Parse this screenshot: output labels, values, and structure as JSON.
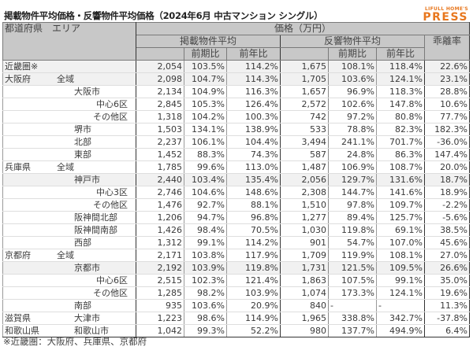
{
  "title": "掲載物件平均価格・反響物件平均価格（2024年6月 中古マンション シングル）",
  "logo": {
    "top": "LIFULL HOME'S",
    "main": "PRESS",
    "color": "#e8771e"
  },
  "header": {
    "area": "都道府県　エリア",
    "price": "価格（万円）",
    "listed": "掲載物件平均",
    "response": "反響物件平均",
    "divergence": "乖離率",
    "qoq": "前期比",
    "yoy": "前年比"
  },
  "rows": [
    {
      "pref": "近畿圏※",
      "area": "",
      "level": 0,
      "hl": true,
      "sep": false,
      "lv": "2,054",
      "lq": "103.5%",
      "ly": "114.2%",
      "rv": "1,675",
      "rq": "108.1%",
      "ry": "118.4%",
      "dv": "22.6%"
    },
    {
      "pref": "大阪府",
      "area": "全域",
      "level": 0,
      "hl": true,
      "sep": true,
      "lv": "2,098",
      "lq": "104.7%",
      "ly": "114.3%",
      "rv": "1,705",
      "rq": "103.6%",
      "ry": "124.1%",
      "dv": "23.1%"
    },
    {
      "pref": "",
      "area": "大阪市",
      "level": 1,
      "hl": false,
      "sep": false,
      "lv": "2,134",
      "lq": "104.9%",
      "ly": "116.3%",
      "rv": "1,657",
      "rq": "96.9%",
      "ry": "118.3%",
      "dv": "28.8%"
    },
    {
      "pref": "",
      "area": "中心6区",
      "level": 2,
      "hl": false,
      "sep": false,
      "lv": "2,845",
      "lq": "105.3%",
      "ly": "126.4%",
      "rv": "2,572",
      "rq": "102.6%",
      "ry": "147.8%",
      "dv": "10.6%"
    },
    {
      "pref": "",
      "area": "その他区",
      "level": 2,
      "hl": false,
      "sep": false,
      "lv": "1,318",
      "lq": "104.2%",
      "ly": "100.3%",
      "rv": "742",
      "rq": "97.2%",
      "ry": "80.8%",
      "dv": "77.7%"
    },
    {
      "pref": "",
      "area": "堺市",
      "level": 1,
      "hl": false,
      "sep": false,
      "lv": "1,503",
      "lq": "134.1%",
      "ly": "138.9%",
      "rv": "533",
      "rq": "78.8%",
      "ry": "82.3%",
      "dv": "182.3%"
    },
    {
      "pref": "",
      "area": "北部",
      "level": 1,
      "hl": false,
      "sep": false,
      "lv": "2,237",
      "lq": "106.1%",
      "ly": "104.4%",
      "rv": "3,494",
      "rq": "241.1%",
      "ry": "701.7%",
      "dv": "-36.0%"
    },
    {
      "pref": "",
      "area": "東部",
      "level": 1,
      "hl": false,
      "sep": false,
      "lv": "1,452",
      "lq": "88.3%",
      "ly": "74.3%",
      "rv": "587",
      "rq": "24.8%",
      "ry": "86.3%",
      "dv": "147.4%"
    },
    {
      "pref": "兵庫県",
      "area": "全域",
      "level": 0,
      "hl": false,
      "sep": false,
      "lv": "1,785",
      "lq": "99.6%",
      "ly": "113.0%",
      "rv": "1,487",
      "rq": "106.9%",
      "ry": "108.7%",
      "dv": "20.0%"
    },
    {
      "pref": "",
      "area": "神戸市",
      "level": 1,
      "hl": true,
      "sep": true,
      "lv": "2,440",
      "lq": "103.4%",
      "ly": "135.4%",
      "rv": "2,056",
      "rq": "129.7%",
      "ry": "131.6%",
      "dv": "18.7%"
    },
    {
      "pref": "",
      "area": "中心3区",
      "level": 2,
      "hl": false,
      "sep": false,
      "lv": "2,746",
      "lq": "104.6%",
      "ly": "148.6%",
      "rv": "2,308",
      "rq": "144.7%",
      "ry": "141.6%",
      "dv": "18.9%"
    },
    {
      "pref": "",
      "area": "その他区",
      "level": 2,
      "hl": false,
      "sep": false,
      "lv": "1,476",
      "lq": "92.7%",
      "ly": "88.1%",
      "rv": "1,510",
      "rq": "97.8%",
      "ry": "109.7%",
      "dv": "-2.2%"
    },
    {
      "pref": "",
      "area": "阪神間北部",
      "level": 1,
      "hl": false,
      "sep": false,
      "lv": "1,206",
      "lq": "94.7%",
      "ly": "96.8%",
      "rv": "1,277",
      "rq": "89.4%",
      "ry": "125.7%",
      "dv": "-5.6%"
    },
    {
      "pref": "",
      "area": "阪神間南部",
      "level": 1,
      "hl": false,
      "sep": false,
      "lv": "1,426",
      "lq": "98.4%",
      "ly": "70.5%",
      "rv": "1,030",
      "rq": "119.8%",
      "ry": "69.1%",
      "dv": "38.5%"
    },
    {
      "pref": "",
      "area": "西部",
      "level": 1,
      "hl": false,
      "sep": false,
      "lv": "1,312",
      "lq": "99.1%",
      "ly": "114.2%",
      "rv": "901",
      "rq": "54.7%",
      "ry": "107.0%",
      "dv": "45.6%"
    },
    {
      "pref": "京都府",
      "area": "全域",
      "level": 0,
      "hl": false,
      "sep": true,
      "lv": "2,171",
      "lq": "103.8%",
      "ly": "117.9%",
      "rv": "1,709",
      "rq": "119.9%",
      "ry": "108.1%",
      "dv": "27.0%"
    },
    {
      "pref": "",
      "area": "京都市",
      "level": 1,
      "hl": true,
      "sep": true,
      "lv": "2,192",
      "lq": "103.9%",
      "ly": "119.8%",
      "rv": "1,731",
      "rq": "121.5%",
      "ry": "109.5%",
      "dv": "26.6%"
    },
    {
      "pref": "",
      "area": "中心6区",
      "level": 2,
      "hl": false,
      "sep": false,
      "lv": "2,515",
      "lq": "102.3%",
      "ly": "121.4%",
      "rv": "1,863",
      "rq": "107.5%",
      "ry": "99.1%",
      "dv": "35.0%"
    },
    {
      "pref": "",
      "area": "その他区",
      "level": 2,
      "hl": false,
      "sep": false,
      "lv": "1,285",
      "lq": "98.2%",
      "ly": "103.9%",
      "rv": "1,074",
      "rq": "173.3%",
      "ry": "124.1%",
      "dv": "19.6%"
    },
    {
      "pref": "",
      "area": "南部",
      "level": 1,
      "hl": false,
      "sep": false,
      "lv": "935",
      "lq": "103.6%",
      "ly": "20.9%",
      "rv": "840",
      "rq": "-",
      "ry": "-",
      "dv": "11.3%"
    },
    {
      "pref": "滋賀県",
      "area": "大津市",
      "level": 0,
      "hl": false,
      "sep": true,
      "lv": "1,223",
      "lq": "98.6%",
      "ly": "114.9%",
      "rv": "1,965",
      "rq": "338.8%",
      "ry": "342.7%",
      "dv": "-37.8%"
    },
    {
      "pref": "和歌山県",
      "area": "和歌山市",
      "level": 0,
      "hl": false,
      "sep": true,
      "lv": "1,042",
      "lq": "99.3%",
      "ly": "52.2%",
      "rv": "980",
      "rq": "137.7%",
      "ry": "494.9%",
      "dv": "6.4%"
    }
  ],
  "footnote": "※近畿圏：大阪府、兵庫県、京都府"
}
